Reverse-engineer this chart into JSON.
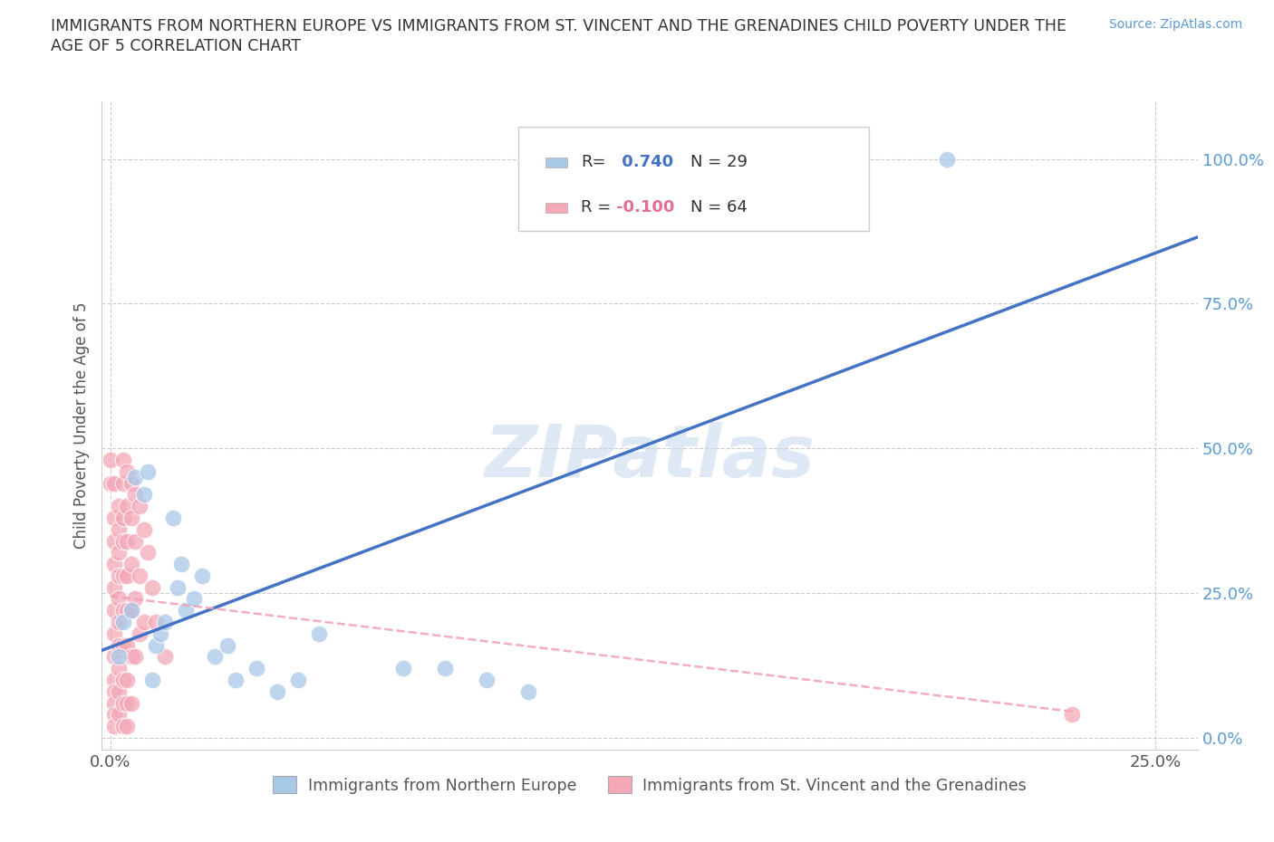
{
  "title_line1": "IMMIGRANTS FROM NORTHERN EUROPE VS IMMIGRANTS FROM ST. VINCENT AND THE GRENADINES CHILD POVERTY UNDER THE",
  "title_line2": "AGE OF 5 CORRELATION CHART",
  "source": "Source: ZipAtlas.com",
  "ylabel_label": "Child Poverty Under the Age of 5",
  "R_blue": 0.74,
  "N_blue": 29,
  "R_pink": -0.1,
  "N_pink": 64,
  "legend_blue": "Immigrants from Northern Europe",
  "legend_pink": "Immigrants from St. Vincent and the Grenadines",
  "blue_color": "#a8c8e8",
  "pink_color": "#f4a8b8",
  "line_blue": "#4472c4",
  "line_pink": "#f0a0b5",
  "watermark": "ZIPatlas",
  "blue_scatter": [
    [
      0.002,
      0.14
    ],
    [
      0.003,
      0.2
    ],
    [
      0.005,
      0.22
    ],
    [
      0.006,
      0.45
    ],
    [
      0.008,
      0.42
    ],
    [
      0.009,
      0.46
    ],
    [
      0.01,
      0.1
    ],
    [
      0.011,
      0.16
    ],
    [
      0.012,
      0.18
    ],
    [
      0.013,
      0.2
    ],
    [
      0.015,
      0.38
    ],
    [
      0.016,
      0.26
    ],
    [
      0.017,
      0.3
    ],
    [
      0.018,
      0.22
    ],
    [
      0.02,
      0.24
    ],
    [
      0.022,
      0.28
    ],
    [
      0.025,
      0.14
    ],
    [
      0.028,
      0.16
    ],
    [
      0.03,
      0.1
    ],
    [
      0.035,
      0.12
    ],
    [
      0.04,
      0.08
    ],
    [
      0.045,
      0.1
    ],
    [
      0.05,
      0.18
    ],
    [
      0.07,
      0.12
    ],
    [
      0.08,
      0.12
    ],
    [
      0.09,
      0.1
    ],
    [
      0.1,
      0.08
    ],
    [
      0.11,
      1.0
    ],
    [
      0.2,
      1.0
    ]
  ],
  "pink_scatter": [
    [
      0.0,
      0.48
    ],
    [
      0.0,
      0.44
    ],
    [
      0.001,
      0.44
    ],
    [
      0.001,
      0.38
    ],
    [
      0.001,
      0.34
    ],
    [
      0.001,
      0.3
    ],
    [
      0.001,
      0.26
    ],
    [
      0.001,
      0.22
    ],
    [
      0.001,
      0.18
    ],
    [
      0.001,
      0.14
    ],
    [
      0.001,
      0.1
    ],
    [
      0.001,
      0.08
    ],
    [
      0.001,
      0.06
    ],
    [
      0.001,
      0.04
    ],
    [
      0.001,
      0.02
    ],
    [
      0.002,
      0.4
    ],
    [
      0.002,
      0.36
    ],
    [
      0.002,
      0.32
    ],
    [
      0.002,
      0.28
    ],
    [
      0.002,
      0.24
    ],
    [
      0.002,
      0.2
    ],
    [
      0.002,
      0.16
    ],
    [
      0.002,
      0.12
    ],
    [
      0.002,
      0.08
    ],
    [
      0.002,
      0.04
    ],
    [
      0.003,
      0.48
    ],
    [
      0.003,
      0.44
    ],
    [
      0.003,
      0.38
    ],
    [
      0.003,
      0.34
    ],
    [
      0.003,
      0.28
    ],
    [
      0.003,
      0.22
    ],
    [
      0.003,
      0.16
    ],
    [
      0.003,
      0.1
    ],
    [
      0.003,
      0.06
    ],
    [
      0.003,
      0.02
    ],
    [
      0.004,
      0.46
    ],
    [
      0.004,
      0.4
    ],
    [
      0.004,
      0.34
    ],
    [
      0.004,
      0.28
    ],
    [
      0.004,
      0.22
    ],
    [
      0.004,
      0.16
    ],
    [
      0.004,
      0.1
    ],
    [
      0.004,
      0.06
    ],
    [
      0.004,
      0.02
    ],
    [
      0.005,
      0.44
    ],
    [
      0.005,
      0.38
    ],
    [
      0.005,
      0.3
    ],
    [
      0.005,
      0.22
    ],
    [
      0.005,
      0.14
    ],
    [
      0.005,
      0.06
    ],
    [
      0.006,
      0.42
    ],
    [
      0.006,
      0.34
    ],
    [
      0.006,
      0.24
    ],
    [
      0.006,
      0.14
    ],
    [
      0.007,
      0.4
    ],
    [
      0.007,
      0.28
    ],
    [
      0.007,
      0.18
    ],
    [
      0.008,
      0.36
    ],
    [
      0.008,
      0.2
    ],
    [
      0.009,
      0.32
    ],
    [
      0.01,
      0.26
    ],
    [
      0.011,
      0.2
    ],
    [
      0.013,
      0.14
    ],
    [
      0.23,
      0.04
    ]
  ],
  "xmin": -0.002,
  "xmax": 0.26,
  "ymin": -0.02,
  "ymax": 1.1,
  "xticks": [
    0.0,
    0.25
  ],
  "yticks": [
    0.0,
    0.25,
    0.5,
    0.75,
    1.0
  ],
  "ytick_labels": [
    "0.0%",
    "25.0%",
    "50.0%",
    "75.0%",
    "100.0%"
  ],
  "xtick_labels": [
    "0.0%",
    "25.0%"
  ],
  "blue_line_x0": -0.002,
  "blue_line_x1": 0.26,
  "pink_line_x0": 0.0,
  "pink_line_x1": 0.23
}
